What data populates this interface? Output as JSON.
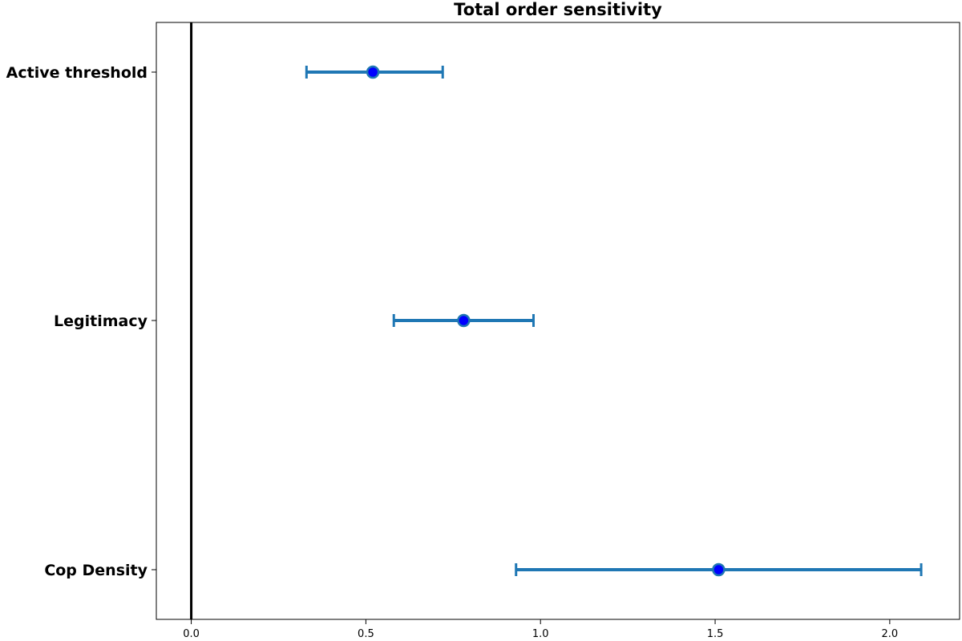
{
  "chart_data": {
    "type": "errorbar",
    "title": "Total order sensitivity",
    "xlabel": "",
    "ylabel": "",
    "xlim": [
      -0.1,
      2.2
    ],
    "xticks": [
      "0.0",
      "0.5",
      "1.0",
      "1.5",
      "2.0"
    ],
    "xtick_values": [
      0.0,
      0.5,
      1.0,
      1.5,
      2.0
    ],
    "categories": [
      "Active threshold",
      "Legitimacy",
      "Cop Density"
    ],
    "values": [
      0.52,
      0.78,
      1.51
    ],
    "ci_low": [
      0.33,
      0.58,
      0.93
    ],
    "ci_high": [
      0.72,
      0.98,
      2.09
    ],
    "reference_line_x": 0.0,
    "grid": false,
    "colors": {
      "errorbar": "#1f77b4",
      "marker_fill": "#0000ff",
      "marker_edge": "#1f77b4",
      "reference_line": "#000000"
    }
  }
}
